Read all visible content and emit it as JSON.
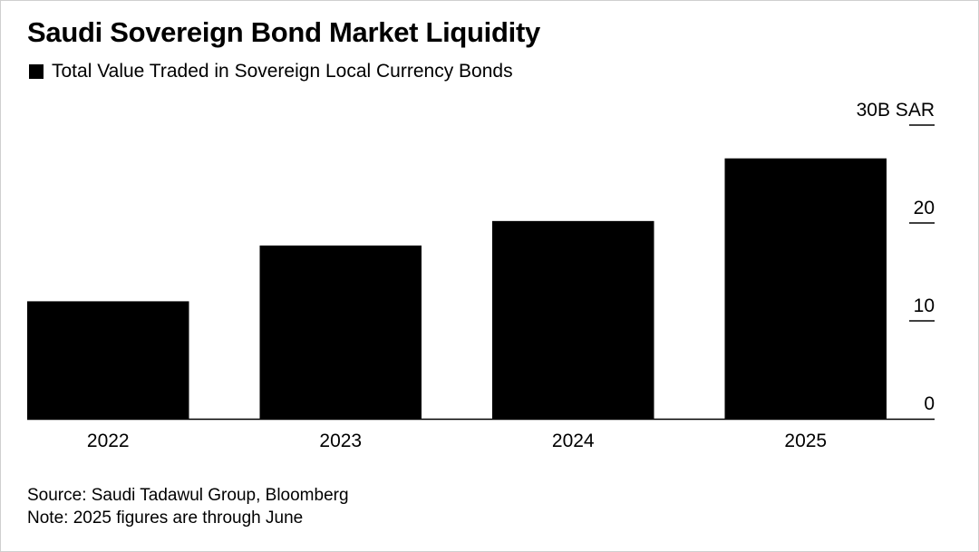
{
  "chart_data": {
    "type": "bar",
    "title": "Saudi Sovereign Bond Market Liquidity",
    "legend": [
      {
        "label": "Total Value Traded in Sovereign Local Currency Bonds",
        "color": "#000000"
      }
    ],
    "categories": [
      "2022",
      "2023",
      "2024",
      "2025"
    ],
    "series": [
      {
        "name": "Total Value Traded in Sovereign Local Currency Bonds",
        "values": [
          12,
          17.7,
          20.2,
          26.6
        ],
        "color": "#000000"
      }
    ],
    "y_ticks": [
      0,
      10,
      20,
      30
    ],
    "y_tick_labels": [
      "0",
      "10",
      "20",
      "30B SAR"
    ],
    "ylim": [
      0,
      30
    ],
    "y_axis_position": "right",
    "grid": false,
    "legend_position": "top-left"
  },
  "footer": {
    "source": "Source: Saudi Tadawul Group, Bloomberg",
    "note": "Note: 2025 figures are through June"
  }
}
